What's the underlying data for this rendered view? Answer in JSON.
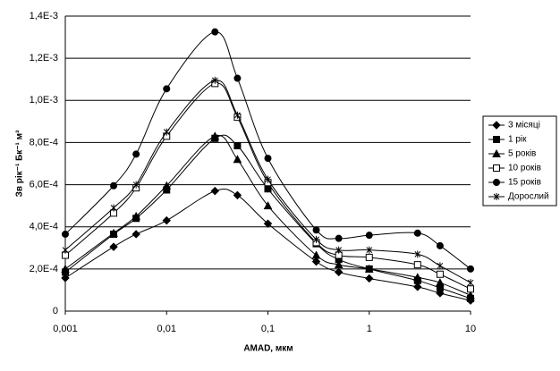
{
  "chart_data": {
    "type": "line",
    "x_scale": "log",
    "y_label": "Зв рік⁻¹ Бк⁻¹ м³",
    "x_label": "AMAD, мкм",
    "x": [
      0.001,
      0.003,
      0.005,
      0.01,
      0.03,
      0.05,
      0.1,
      0.3,
      0.5,
      1,
      3,
      5,
      10
    ],
    "xlim": [
      0.001,
      10
    ],
    "xticks": [
      {
        "value": 0.001,
        "label": "0,001"
      },
      {
        "value": 0.01,
        "label": "0,01"
      },
      {
        "value": 0.1,
        "label": "0,1"
      },
      1,
      10
    ],
    "ylim": [
      0,
      0.0014
    ],
    "yticks": [
      0,
      {
        "value": 0.0002,
        "label": "2,0E-4"
      },
      {
        "value": 0.0004,
        "label": "4,0E-4"
      },
      {
        "value": 0.0006,
        "label": "6,0E-4"
      },
      {
        "value": 0.0008,
        "label": "8,0E-4"
      },
      {
        "value": 0.001,
        "label": "1,0E-3"
      },
      {
        "value": 0.0012,
        "label": "1,2E-3"
      },
      {
        "value": 0.0014,
        "label": "1,4E-3"
      }
    ],
    "grid": true,
    "legend": "right",
    "series": [
      {
        "name": "3 місяці",
        "color": "#000000",
        "marker": "diamond",
        "values": [
          0.000157,
          0.000305,
          0.000365,
          0.00043,
          0.00057,
          0.00055,
          0.000415,
          0.000235,
          0.000185,
          0.000155,
          0.000115,
          8.5e-05,
          5e-05
        ]
      },
      {
        "name": "1 рік",
        "color": "#000000",
        "marker": "square",
        "values": [
          0.000185,
          0.000365,
          0.00044,
          0.000575,
          0.00082,
          0.000785,
          0.00058,
          0.00032,
          0.000245,
          0.0002,
          0.000145,
          0.00011,
          6e-05
        ]
      },
      {
        "name": "5 років",
        "color": "#000000",
        "marker": "triangle",
        "values": [
          0.0002,
          0.00037,
          0.00045,
          0.000595,
          0.00083,
          0.00072,
          0.0005,
          0.000265,
          0.00022,
          0.0002,
          0.00016,
          0.000135,
          7.5e-05
        ]
      },
      {
        "name": "10 років",
        "color": "#000000",
        "marker": "open-square",
        "values": [
          0.000265,
          0.000465,
          0.000585,
          0.00083,
          0.00108,
          0.00092,
          0.00061,
          0.000325,
          0.000265,
          0.000255,
          0.00022,
          0.000175,
          0.000105
        ]
      },
      {
        "name": "15 років",
        "color": "#000000",
        "marker": "circle",
        "values": [
          0.000365,
          0.000595,
          0.000745,
          0.001055,
          0.001325,
          0.001105,
          0.000725,
          0.000385,
          0.000345,
          0.00036,
          0.00037,
          0.00031,
          0.0002
        ]
      },
      {
        "name": "Дорослий",
        "color": "#000000",
        "marker": "star",
        "values": [
          0.00029,
          0.00049,
          0.0006,
          0.00085,
          0.001095,
          0.00093,
          0.000625,
          0.00034,
          0.00029,
          0.00029,
          0.00027,
          0.000215,
          0.000135
        ]
      }
    ]
  }
}
